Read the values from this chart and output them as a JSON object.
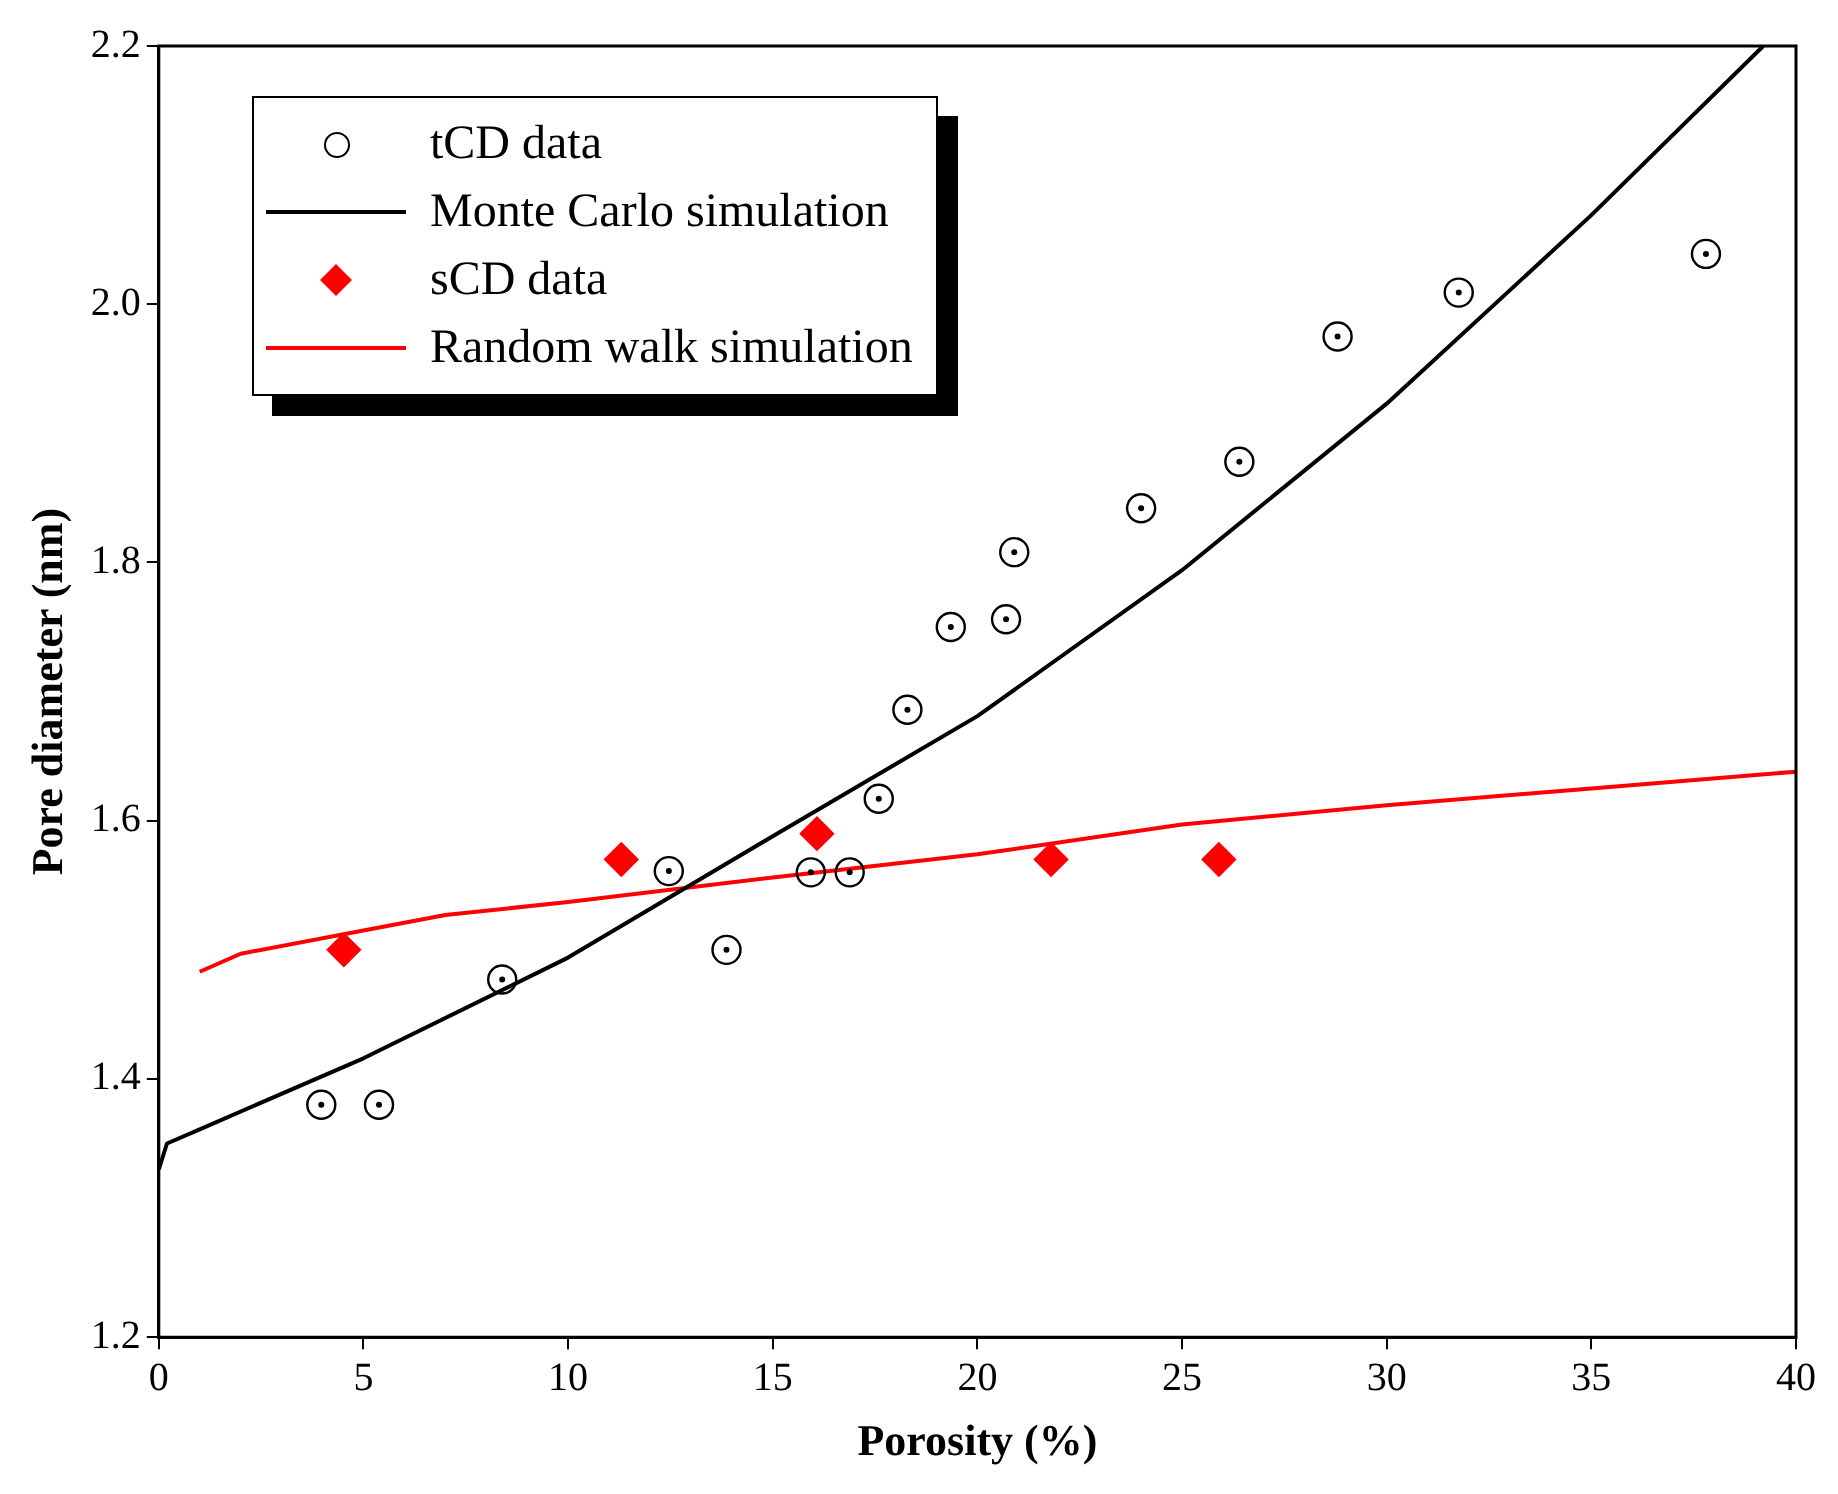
{
  "chart_data": {
    "type": "scatter",
    "xlabel": "Porosity (%)",
    "ylabel": "Pore diameter (nm)",
    "xlim": [
      0,
      40
    ],
    "xticks": [
      0,
      5,
      10,
      15,
      20,
      25,
      30,
      35,
      40
    ],
    "ylim": [
      1.2,
      2.2
    ],
    "yticks": [
      1.2,
      1.4,
      1.6,
      1.8,
      {
        "value": 2,
        "label": "2.0"
      },
      2.2
    ],
    "grid": false,
    "legend": "top left",
    "series": [
      {
        "name": "tCD data",
        "type": "scatter",
        "marker": "circle",
        "color": "#000000",
        "x": [
          3.97,
          5.38,
          8.39,
          12.46,
          13.87,
          15.93,
          16.88,
          17.59,
          18.29,
          19.35,
          20.7,
          20.9,
          24.0,
          26.4,
          28.8,
          31.76,
          37.8
        ],
        "values": [
          1.38,
          1.38,
          1.477,
          1.561,
          1.5,
          1.56,
          1.56,
          1.617,
          1.686,
          1.75,
          1.756,
          1.808,
          1.842,
          1.878,
          1.975,
          2.009,
          2.039
        ]
      },
      {
        "name": "Monte Carlo simulation",
        "type": "line",
        "marker": "none",
        "color": "#000000",
        "x": [
          0,
          0.2,
          1,
          5,
          10,
          15,
          20,
          25,
          30,
          35,
          39.2
        ],
        "values": [
          1.33,
          1.35,
          1.361,
          1.416,
          1.494,
          1.588,
          1.681,
          1.794,
          1.923,
          2.069,
          2.2
        ]
      },
      {
        "name": "sCD data",
        "type": "scatter",
        "marker": "diamond",
        "color": "#ff0000",
        "x": [
          4.52,
          11.3,
          16.08,
          21.8,
          25.9
        ],
        "values": [
          1.5,
          1.57,
          1.59,
          1.57,
          1.57
        ]
      },
      {
        "name": "Random walk simulation",
        "type": "line",
        "marker": "none",
        "color": "#ff0000",
        "x": [
          1,
          2,
          5,
          7,
          10,
          15,
          20,
          25,
          30,
          35,
          40
        ],
        "values": [
          1.483,
          1.497,
          1.515,
          1.527,
          1.537,
          1.556,
          1.574,
          1.597,
          1.612,
          1.625,
          1.638
        ]
      }
    ]
  }
}
